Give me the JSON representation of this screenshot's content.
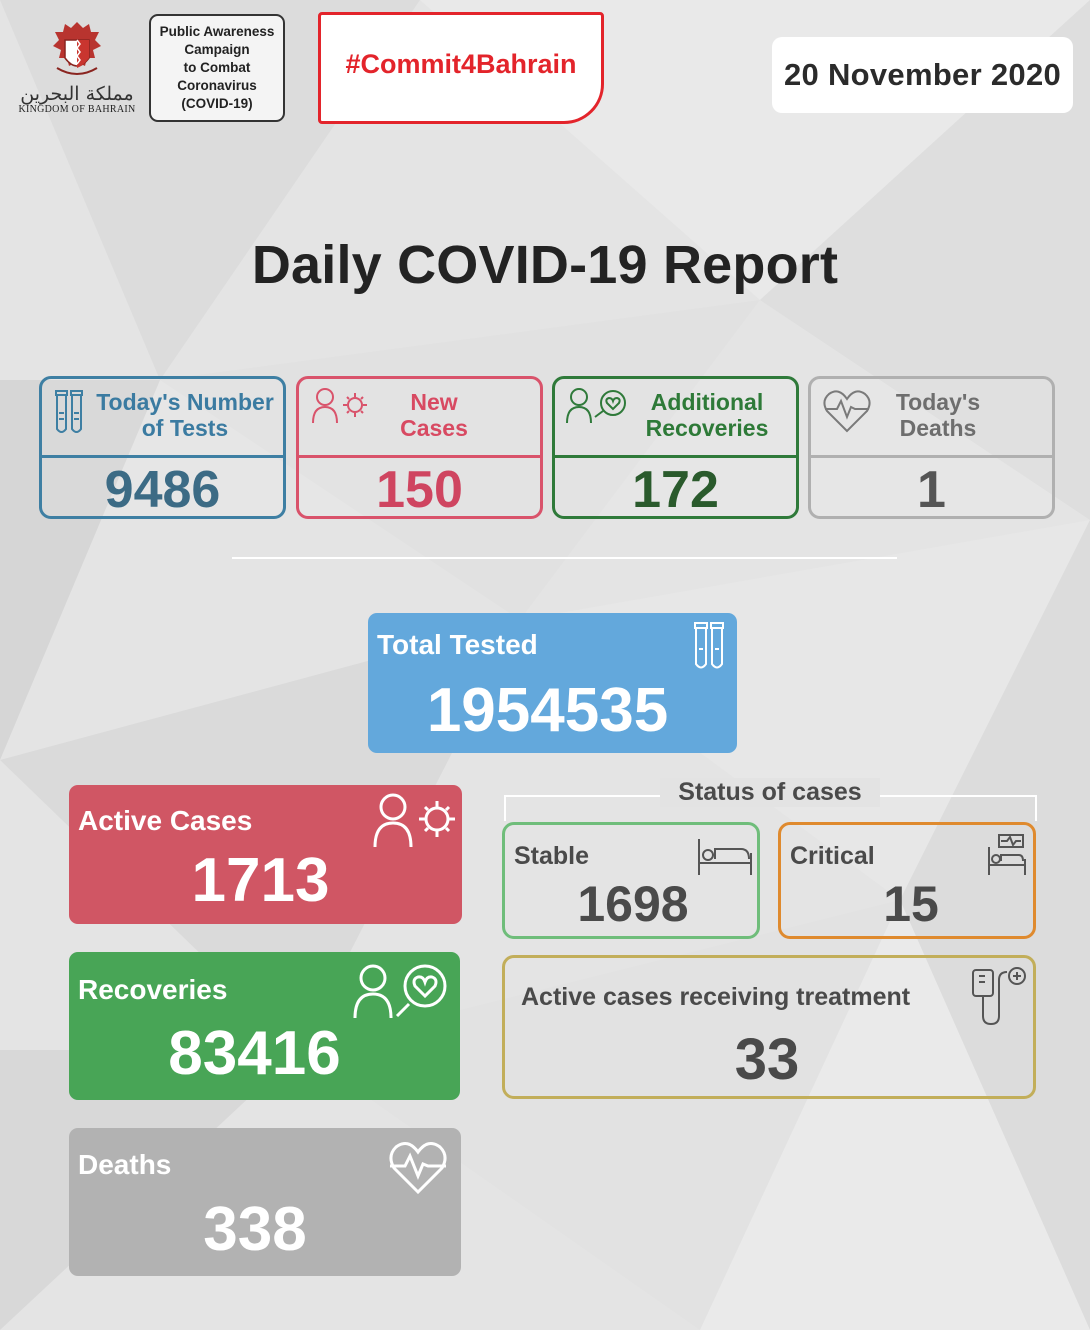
{
  "header": {
    "emblem_arabic": "مملكة البحرين",
    "emblem_english": "KINGDOM OF BAHRAIN",
    "campaign_text": "Public Awareness\nCampaign\nto Combat\nCoronavirus\n(COVID-19)",
    "hashtag": "#Commit4Bahrain",
    "date": "20 November 2020"
  },
  "title": "Daily COVID-19 Report",
  "daily": {
    "tests": {
      "label": "Today's Number\nof Tests",
      "value": "9486",
      "icon": "test-tubes-icon"
    },
    "new_cases": {
      "label": "New\nCases",
      "value": "150",
      "icon": "person-virus-icon"
    },
    "recoveries": {
      "label": "Additional\nRecoveries",
      "value": "172",
      "icon": "person-heart-icon"
    },
    "deaths": {
      "label": "Today's\nDeaths",
      "value": "1",
      "icon": "heartbeat-icon"
    }
  },
  "totals": {
    "total_tested": {
      "label": "Total Tested",
      "value": "1954535"
    },
    "active_cases": {
      "label": "Active Cases",
      "value": "1713"
    },
    "recoveries": {
      "label": "Recoveries",
      "value": "83416"
    },
    "deaths": {
      "label": "Deaths",
      "value": "338"
    }
  },
  "status": {
    "title": "Status of cases",
    "stable": {
      "label": "Stable",
      "value": "1698"
    },
    "critical": {
      "label": "Critical",
      "value": "15"
    },
    "treatment": {
      "label": "Active cases receiving treatment",
      "value": "33"
    }
  },
  "colors": {
    "tests": "#3e7fa3",
    "new_cases": "#d9536b",
    "recoveries": "#2f7a3a",
    "deaths": "#b0b0b0",
    "total_tested_bg": "#63a8dc",
    "active_bg": "#d05664",
    "recoveries_bg": "#48a556",
    "deaths_bg": "#b2b2b2",
    "hashtag_red": "#e3242b"
  }
}
